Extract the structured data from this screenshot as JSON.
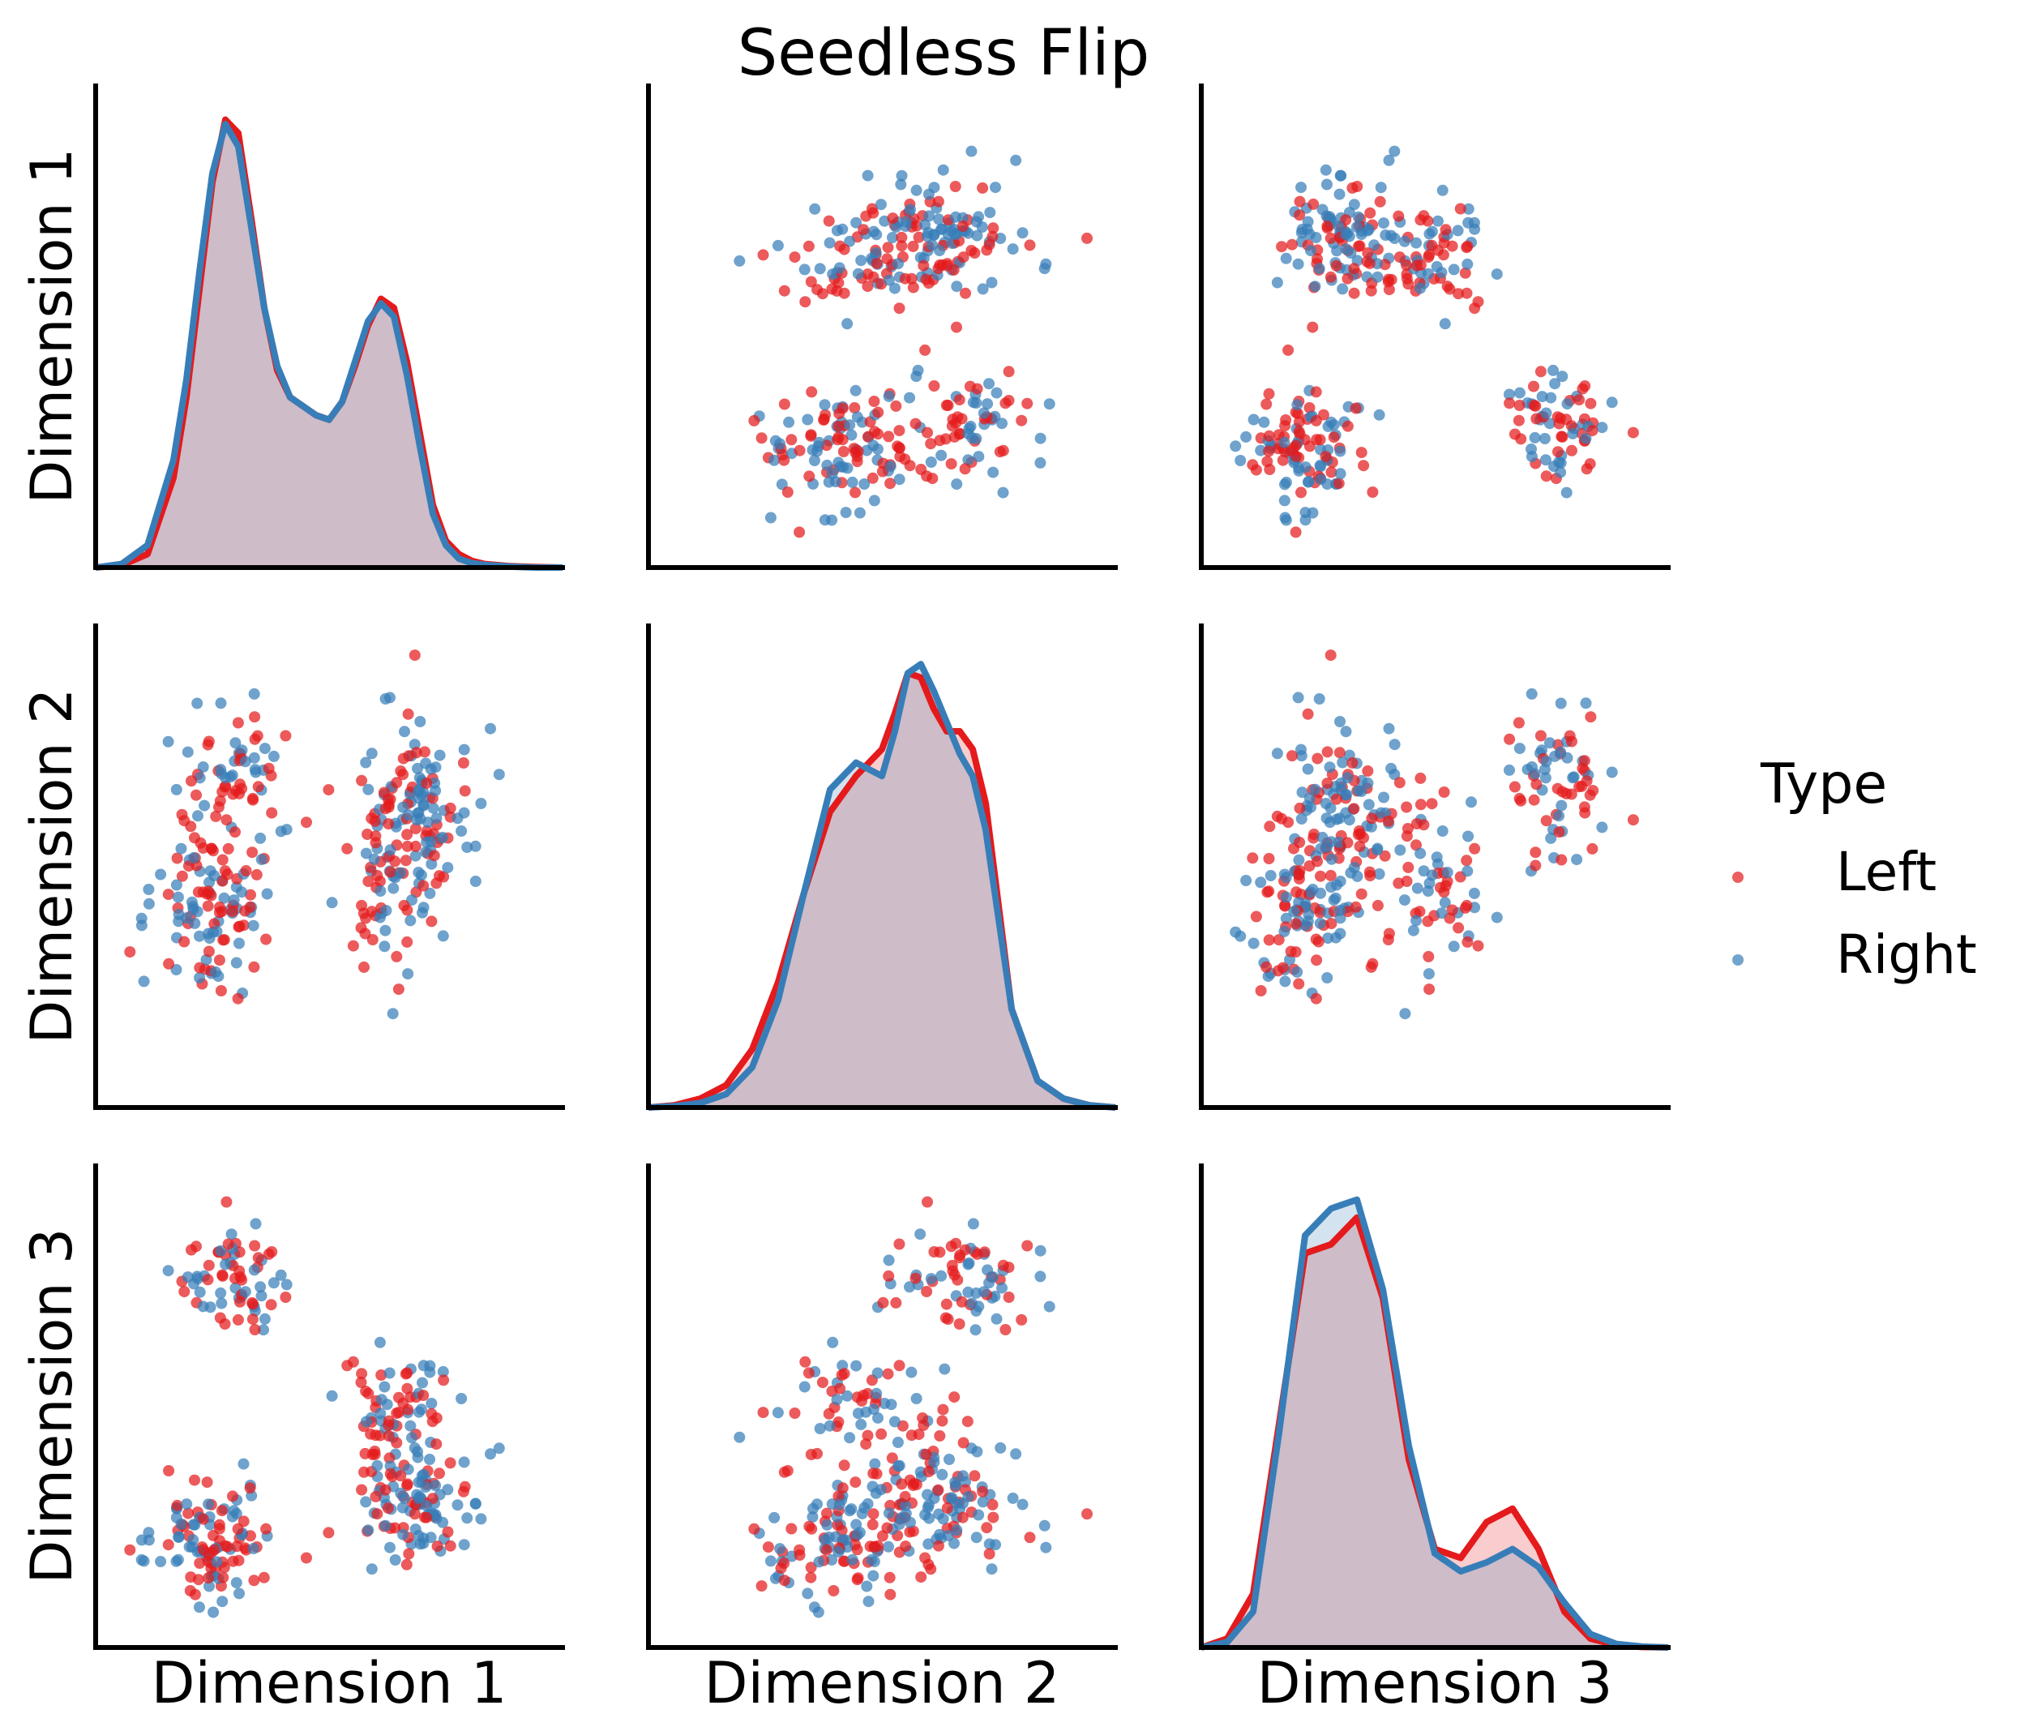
{
  "title": "Seedless Flip",
  "colors": {
    "left": "#e41a1c",
    "right": "#377eb8"
  },
  "chart_data": {
    "type": "scatter",
    "layout": "pairplot",
    "title": "Seedless Flip",
    "variables": [
      "Dimension 1",
      "Dimension 2",
      "Dimension 3"
    ],
    "diagonal": "kde",
    "legend": {
      "title": "Type",
      "placement": "right",
      "entries": [
        {
          "label": "Left",
          "color": "#e41a1c"
        },
        {
          "label": "Right",
          "color": "#377eb8"
        }
      ]
    },
    "ranges": {
      "dim1": [
        -3.6,
        3.6
      ],
      "dim2": [
        -3.6,
        3.6
      ],
      "dim3": [
        -3.6,
        3.6
      ]
    },
    "ticks": "none",
    "grid": false,
    "point_count_per_type": 180,
    "kde": {
      "dim1": {
        "x": [
          -3.6,
          -3.2,
          -2.8,
          -2.4,
          -2.2,
          -2.0,
          -1.8,
          -1.6,
          -1.4,
          -1.2,
          -1.0,
          -0.8,
          -0.6,
          -0.4,
          -0.2,
          0.0,
          0.2,
          0.4,
          0.6,
          0.8,
          1.0,
          1.2,
          1.4,
          1.6,
          1.8,
          2.0,
          2.2,
          2.4,
          2.8,
          3.2,
          3.6
        ],
        "left": [
          0.0,
          0.005,
          0.03,
          0.2,
          0.38,
          0.62,
          0.86,
          1.0,
          0.97,
          0.78,
          0.58,
          0.44,
          0.38,
          0.36,
          0.34,
          0.33,
          0.37,
          0.45,
          0.54,
          0.6,
          0.58,
          0.46,
          0.3,
          0.14,
          0.06,
          0.03,
          0.015,
          0.008,
          0.003,
          0.001,
          0.0
        ],
        "right": [
          0.0,
          0.008,
          0.05,
          0.24,
          0.42,
          0.66,
          0.88,
          0.99,
          0.94,
          0.76,
          0.58,
          0.45,
          0.38,
          0.36,
          0.34,
          0.33,
          0.37,
          0.46,
          0.55,
          0.59,
          0.56,
          0.43,
          0.27,
          0.12,
          0.05,
          0.02,
          0.01,
          0.006,
          0.002,
          0.0,
          0.0
        ]
      },
      "dim2": {
        "x": [
          -3.6,
          -3.2,
          -2.8,
          -2.4,
          -2.0,
          -1.6,
          -1.2,
          -0.8,
          -0.4,
          0.0,
          0.2,
          0.4,
          0.6,
          0.8,
          1.0,
          1.2,
          1.4,
          1.6,
          1.8,
          2.0,
          2.4,
          2.8,
          3.2,
          3.6
        ],
        "left": [
          0.0,
          0.005,
          0.02,
          0.05,
          0.13,
          0.28,
          0.48,
          0.66,
          0.74,
          0.8,
          0.88,
          0.97,
          0.96,
          0.89,
          0.84,
          0.84,
          0.8,
          0.68,
          0.45,
          0.22,
          0.06,
          0.02,
          0.005,
          0.0
        ],
        "right": [
          0.0,
          0.003,
          0.01,
          0.03,
          0.09,
          0.24,
          0.48,
          0.71,
          0.77,
          0.74,
          0.84,
          0.97,
          0.99,
          0.93,
          0.86,
          0.79,
          0.74,
          0.62,
          0.42,
          0.22,
          0.06,
          0.02,
          0.005,
          0.0
        ]
      },
      "dim3": {
        "x": [
          -3.6,
          -3.2,
          -2.8,
          -2.4,
          -2.0,
          -1.6,
          -1.2,
          -0.8,
          -0.4,
          0.0,
          0.4,
          0.8,
          1.2,
          1.6,
          2.0,
          2.4,
          2.8,
          3.2,
          3.6
        ],
        "left": [
          0.0,
          0.02,
          0.12,
          0.5,
          0.88,
          0.9,
          0.96,
          0.78,
          0.42,
          0.22,
          0.2,
          0.28,
          0.31,
          0.22,
          0.08,
          0.02,
          0.005,
          0.001,
          0.0
        ],
        "right": [
          0.0,
          0.012,
          0.08,
          0.48,
          0.92,
          0.98,
          1.0,
          0.8,
          0.45,
          0.21,
          0.17,
          0.19,
          0.22,
          0.18,
          0.1,
          0.03,
          0.008,
          0.002,
          0.0
        ]
      }
    },
    "clusters": [
      {
        "count": 110,
        "d1": -1.8,
        "d2": [
          -0.9,
          -0.3
        ],
        "d3": -2.0
      },
      {
        "count": 70,
        "d1": -1.4,
        "d2": [
          0.8,
          1.6
        ],
        "d3": 1.9
      },
      {
        "count": 70,
        "d1": 1.2,
        "d2": [
          -1.0,
          0.4
        ],
        "d3": -0.1
      },
      {
        "count": 110,
        "d1": 1.3,
        "d2": [
          0.6,
          1.6
        ],
        "d3": -1.4
      }
    ]
  }
}
